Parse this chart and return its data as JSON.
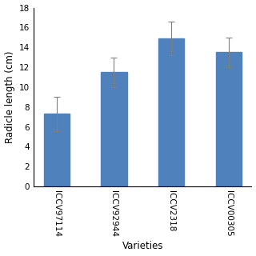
{
  "categories": [
    "ICCV97114",
    "ICCV92944",
    "ICCV2318",
    "ICCV00305"
  ],
  "values": [
    7.3,
    11.5,
    14.9,
    13.5
  ],
  "errors": [
    1.7,
    1.5,
    1.7,
    1.5
  ],
  "bar_color": "#4F81BD",
  "ylabel": "Radicle length (cm)",
  "xlabel": "Varieties",
  "ylim": [
    0,
    18
  ],
  "yticks": [
    0,
    2,
    4,
    6,
    8,
    10,
    12,
    14,
    16,
    18
  ],
  "bar_width": 0.45,
  "background_color": "#ffffff",
  "tick_fontsize": 7.5,
  "label_fontsize": 8.5,
  "error_color": "#808080"
}
